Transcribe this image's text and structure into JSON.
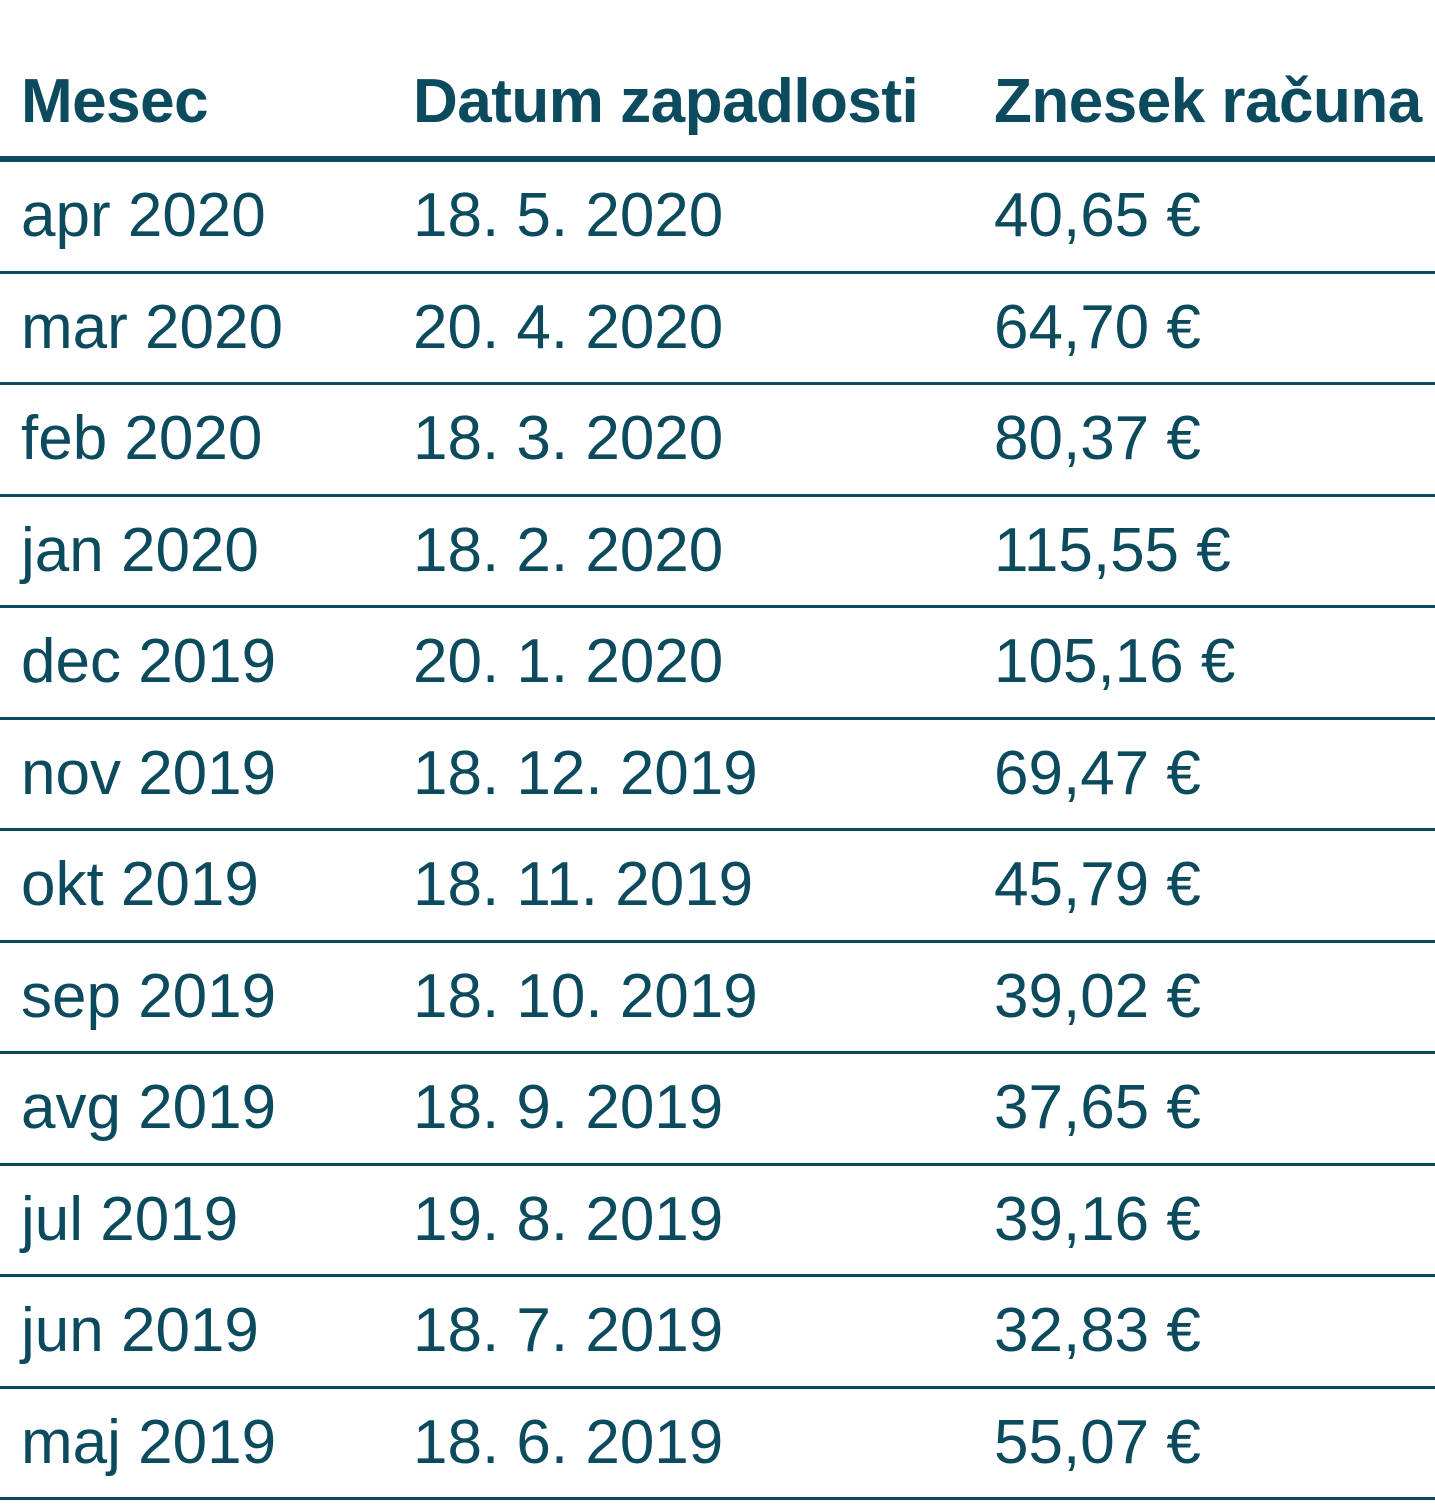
{
  "table": {
    "headers": {
      "month": "Mesec",
      "due_date": "Datum zapadlosti",
      "amount": "Znesek računa"
    },
    "rows": [
      {
        "month": "apr 2020",
        "due_date": "18. 5. 2020",
        "amount": "40,65 €"
      },
      {
        "month": "mar 2020",
        "due_date": "20. 4. 2020",
        "amount": "64,70 €"
      },
      {
        "month": "feb 2020",
        "due_date": "18. 3. 2020",
        "amount": "80,37 €"
      },
      {
        "month": "jan 2020",
        "due_date": "18. 2. 2020",
        "amount": "115,55 €"
      },
      {
        "month": "dec 2019",
        "due_date": "20. 1. 2020",
        "amount": "105,16 €"
      },
      {
        "month": "nov 2019",
        "due_date": "18. 12. 2019",
        "amount": "69,47 €"
      },
      {
        "month": "okt 2019",
        "due_date": "18. 11. 2019",
        "amount": "45,79 €"
      },
      {
        "month": "sep 2019",
        "due_date": "18. 10. 2019",
        "amount": "39,02 €"
      },
      {
        "month": "avg 2019",
        "due_date": "18. 9. 2019",
        "amount": "37,65 €"
      },
      {
        "month": "jul 2019",
        "due_date": "19. 8. 2019",
        "amount": "39,16 €"
      },
      {
        "month": "jun 2019",
        "due_date": "18. 7. 2019",
        "amount": "32,83 €"
      },
      {
        "month": "maj 2019",
        "due_date": "18. 6. 2019",
        "amount": "55,07 €"
      }
    ]
  },
  "colors": {
    "text": "#0c4a5e",
    "rule": "#0c4a5e",
    "background": "#ffffff"
  }
}
